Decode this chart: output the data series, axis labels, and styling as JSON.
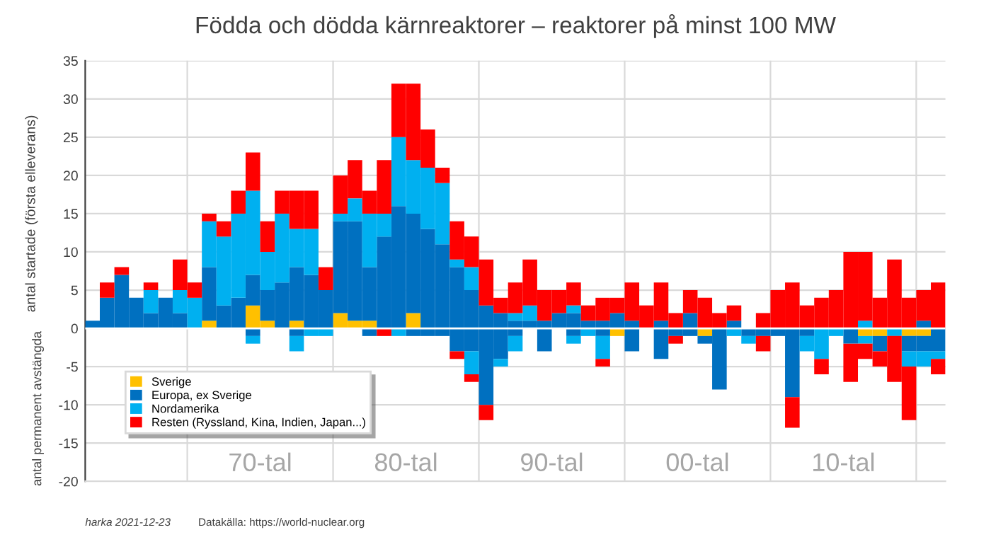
{
  "chart_data": {
    "type": "bar",
    "stacked": true,
    "title": "Födda och dödda kärnreaktorer – reaktorer på minst 100 MW",
    "ylabel": "antal startade (första elleverans)",
    "annotations": [
      "antal permanent avstängda",
      "harka 2021-12-23",
      "Datakälla: https://world-nuclear.org",
      "70-tal",
      "80-tal",
      "90-tal",
      "00-tal",
      "10-tal"
    ],
    "categories": [
      null,
      null,
      null,
      null,
      null,
      null,
      null,
      null,
      null,
      null,
      null,
      null,
      null,
      null,
      null,
      null,
      null,
      null,
      null,
      null,
      null,
      null,
      null,
      null,
      null,
      null,
      null,
      null,
      null,
      null,
      null,
      null,
      null,
      null,
      null,
      null,
      null,
      null,
      null,
      null,
      null,
      null,
      null,
      null,
      null,
      null,
      null,
      null,
      null,
      null,
      null,
      null,
      null,
      null,
      null,
      null,
      null,
      null,
      null
    ],
    "ylim": [
      -20,
      35
    ],
    "yticks": [
      -20,
      -15,
      -10,
      -5,
      0,
      5,
      10,
      15,
      20,
      25,
      30,
      35
    ],
    "grid": true,
    "legend": "bottom left",
    "series": [
      {
        "name": "Sverige",
        "color": "#ffc000",
        "values": [
          null,
          null,
          null,
          null,
          null,
          null,
          null,
          null,
          1,
          null,
          null,
          3,
          1,
          null,
          1,
          null,
          null,
          2,
          1,
          1,
          null,
          null,
          2,
          null,
          null,
          null,
          null,
          null,
          null,
          null,
          null,
          null,
          null,
          null,
          null,
          null,
          null,
          null,
          null,
          null,
          null,
          null,
          null,
          null,
          null,
          null,
          null,
          null,
          null,
          null,
          null,
          null,
          null,
          null,
          null,
          null,
          null,
          null,
          null
        ]
      },
      {
        "name": "Europa, ex Sverige",
        "color": "#0070c0",
        "values": [
          1,
          4,
          7,
          4,
          2,
          4,
          2,
          null,
          7,
          3,
          4,
          4,
          4,
          6,
          7,
          7,
          5,
          12,
          13,
          7,
          12,
          16,
          13,
          13,
          11,
          8,
          5,
          3,
          2,
          1,
          1,
          1,
          2,
          2,
          1,
          1,
          2,
          1,
          null,
          1,
          null,
          2,
          null,
          null,
          1,
          null,
          null,
          null,
          null,
          null,
          null,
          null,
          null,
          null,
          null,
          null,
          null,
          1,
          null
        ]
      },
      {
        "name": "Nordamerika",
        "color": "#00b0f0",
        "values": [
          null,
          null,
          null,
          null,
          3,
          null,
          3,
          4,
          6,
          9,
          11,
          11,
          5,
          9,
          5,
          6,
          null,
          1,
          3,
          7,
          3,
          9,
          7,
          8,
          8,
          1,
          3,
          null,
          null,
          1,
          2,
          null,
          null,
          1,
          null,
          null,
          null,
          null,
          null,
          null,
          null,
          null,
          null,
          null,
          null,
          null,
          null,
          null,
          null,
          null,
          null,
          null,
          null,
          1,
          null,
          null,
          null,
          null,
          null
        ]
      },
      {
        "name": "Resten (Ryssland, Kina, Indien, Japan...)",
        "color": "#ff0000",
        "values": [
          null,
          2,
          1,
          null,
          1,
          null,
          4,
          2,
          1,
          2,
          3,
          5,
          4,
          3,
          5,
          5,
          3,
          5,
          5,
          3,
          7,
          7,
          10,
          5,
          2,
          5,
          4,
          6,
          2,
          4,
          6,
          4,
          3,
          3,
          2,
          3,
          2,
          5,
          3,
          5,
          2,
          3,
          4,
          2,
          2,
          null,
          2,
          5,
          6,
          3,
          4,
          5,
          10,
          9,
          4,
          9,
          4,
          4,
          6
        ]
      },
      {
        "color": "#ffc000",
        "values": [
          null,
          null,
          null,
          null,
          null,
          null,
          null,
          null,
          null,
          null,
          null,
          null,
          null,
          null,
          null,
          null,
          null,
          null,
          null,
          null,
          null,
          null,
          null,
          null,
          null,
          null,
          null,
          null,
          null,
          null,
          null,
          null,
          null,
          null,
          null,
          null,
          -1,
          null,
          null,
          null,
          null,
          null,
          -1,
          null,
          null,
          null,
          null,
          null,
          null,
          null,
          null,
          null,
          null,
          -1,
          -1,
          null,
          -1,
          -1,
          null
        ]
      },
      {
        "color": "#0070c0",
        "values": [
          null,
          null,
          null,
          null,
          null,
          null,
          null,
          null,
          null,
          null,
          null,
          -1,
          null,
          null,
          -1,
          null,
          null,
          null,
          null,
          -1,
          null,
          null,
          -1,
          -1,
          -1,
          -3,
          -3,
          -10,
          -4,
          -1,
          null,
          -3,
          null,
          -1,
          null,
          -1,
          null,
          -3,
          null,
          -4,
          -1,
          -1,
          -1,
          -8,
          null,
          -1,
          -1,
          -1,
          -9,
          -1,
          null,
          null,
          -2,
          null,
          -2,
          null,
          -2,
          -2,
          -3
        ]
      },
      {
        "color": "#00b0f0",
        "values": [
          null,
          null,
          null,
          null,
          null,
          null,
          null,
          null,
          null,
          null,
          null,
          -1,
          null,
          null,
          -2,
          -1,
          -1,
          null,
          null,
          null,
          null,
          -1,
          null,
          null,
          null,
          null,
          -3,
          null,
          -1,
          -2,
          null,
          null,
          null,
          -1,
          -1,
          -3,
          null,
          null,
          null,
          null,
          null,
          null,
          null,
          null,
          -1,
          -1,
          null,
          null,
          null,
          -2,
          -4,
          -1,
          null,
          -1,
          null,
          -1,
          -2,
          -2,
          -1
        ]
      },
      {
        "color": "#ff0000",
        "values": [
          null,
          null,
          null,
          null,
          null,
          null,
          null,
          null,
          null,
          null,
          null,
          null,
          null,
          null,
          null,
          null,
          null,
          null,
          null,
          null,
          -1,
          null,
          null,
          null,
          null,
          -1,
          -1,
          -2,
          null,
          null,
          null,
          null,
          null,
          null,
          null,
          -1,
          null,
          null,
          null,
          null,
          -1,
          null,
          null,
          null,
          null,
          null,
          -2,
          null,
          -4,
          null,
          -2,
          null,
          -5,
          -2,
          -2,
          -6,
          -7,
          null,
          -2
        ]
      }
    ]
  }
}
